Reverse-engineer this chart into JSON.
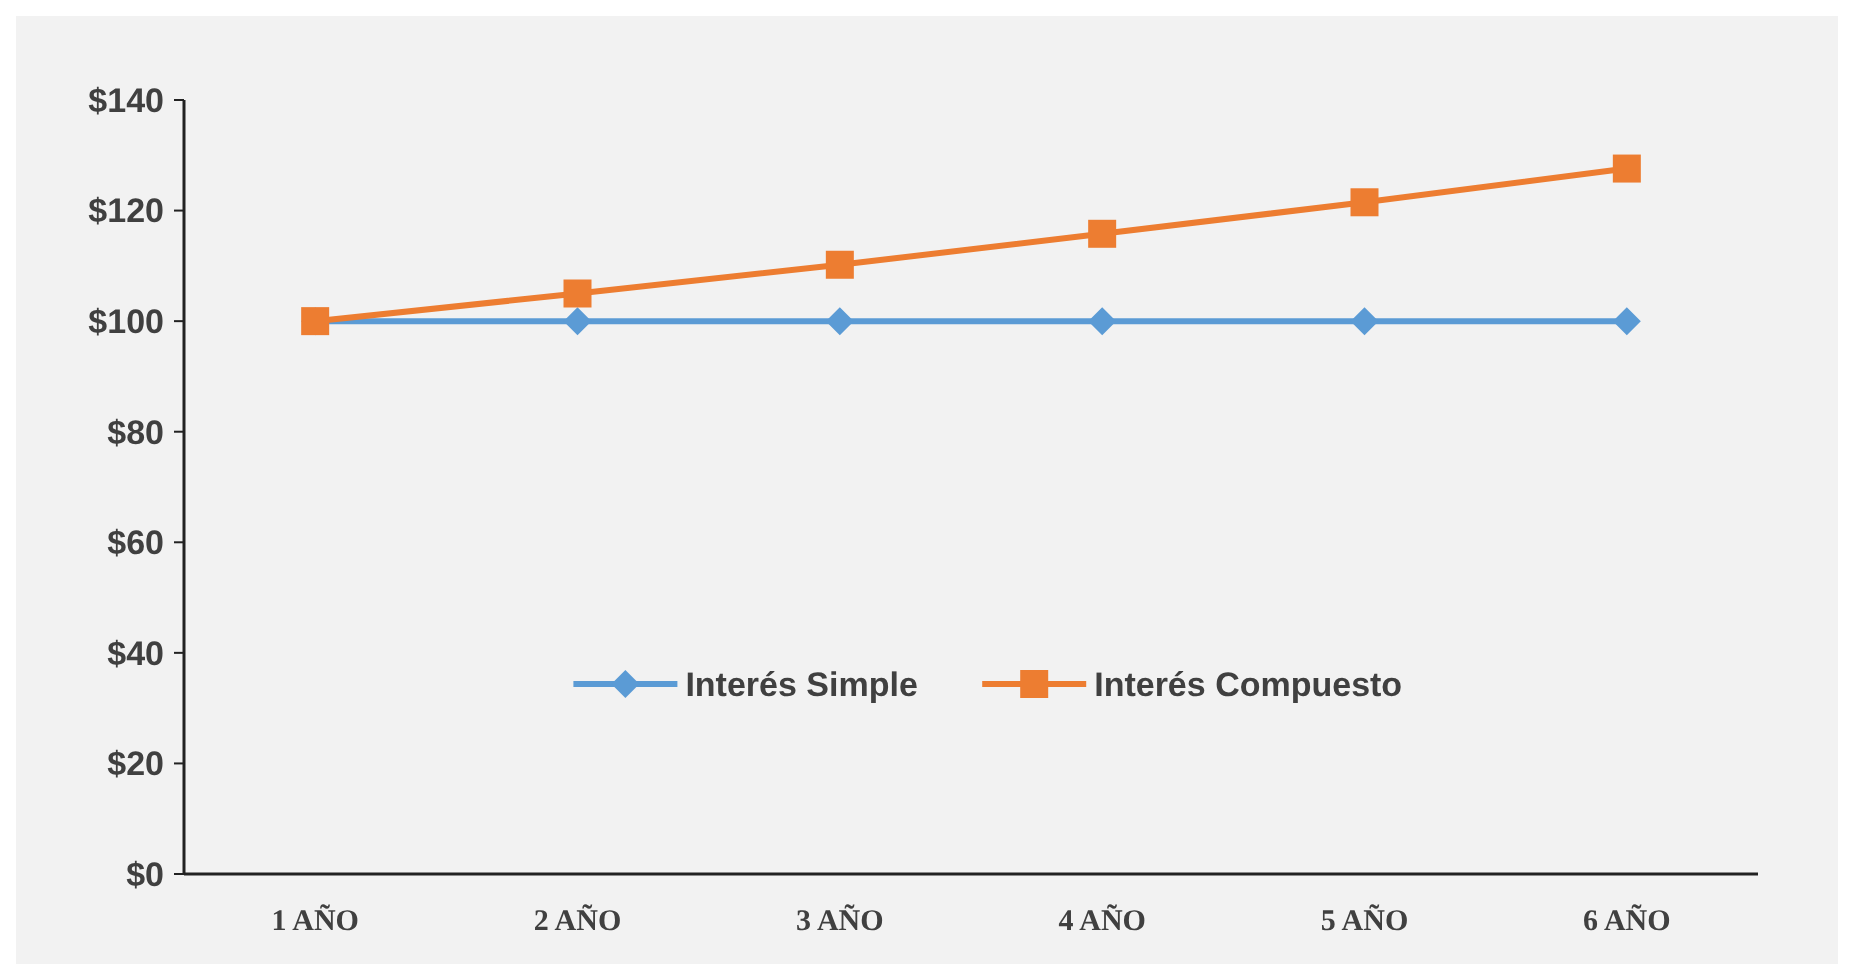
{
  "chart_data": {
    "type": "line",
    "categories": [
      "1 AÑO",
      "2 AÑO",
      "3 AÑO",
      "4 AÑO",
      "5 AÑO",
      "6 AÑO"
    ],
    "series": [
      {
        "name": "Interés Simple",
        "color": "#5b9bd5",
        "marker": "diamond",
        "values": [
          100,
          100,
          100,
          100,
          100,
          100
        ]
      },
      {
        "name": "Interés Compuesto",
        "color": "#ed7d31",
        "marker": "square",
        "values": [
          100,
          105,
          110.2,
          115.8,
          121.5,
          127.6
        ]
      }
    ],
    "ylim": [
      0,
      140
    ],
    "yticks": [
      {
        "value": 0,
        "label": "$0"
      },
      {
        "value": 20,
        "label": "$20"
      },
      {
        "value": 40,
        "label": "$40"
      },
      {
        "value": 60,
        "label": "$60"
      },
      {
        "value": 80,
        "label": "$80"
      },
      {
        "value": 100,
        "label": "$100"
      },
      {
        "value": 120,
        "label": "$120"
      },
      {
        "value": 140,
        "label": "$140"
      }
    ],
    "grid": false,
    "legend": "bottom",
    "line_style": "solid"
  }
}
